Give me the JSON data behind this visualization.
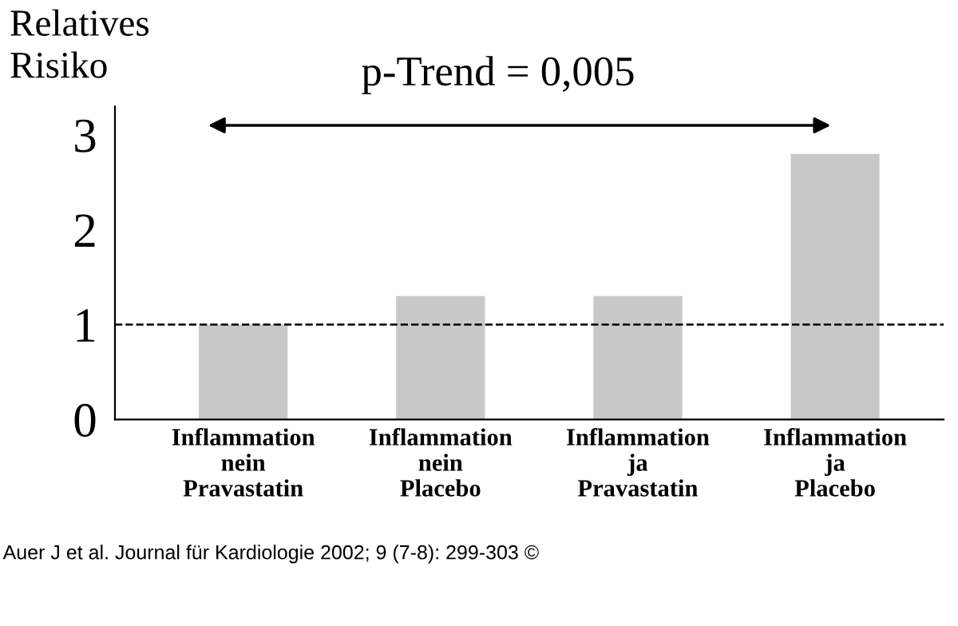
{
  "chart_data": {
    "type": "bar",
    "categories": [
      "Inflammation\nnein\nPravastatin",
      "Inflammation\nnein\nPlacebo",
      "Inflammation\nja\nPravastatin",
      "Inflammation\nja\nPlacebo"
    ],
    "values": [
      1,
      1.3,
      1.3,
      2.8
    ],
    "color": "#c8c8c8",
    "ylabel": "Relatives\nRisiko",
    "ylim": [
      0,
      3.3
    ],
    "yticks": [
      0,
      1,
      2,
      3
    ],
    "ref_lines": [
      {
        "axis": "y",
        "value": 1,
        "line_style": "dashed"
      }
    ],
    "annotations": [
      "p-Trend = 0,005",
      "Auer J et al. Journal für Kardiologie 2002; 9 (7-8): 299-303 ©"
    ],
    "grid": false,
    "legend": false
  }
}
